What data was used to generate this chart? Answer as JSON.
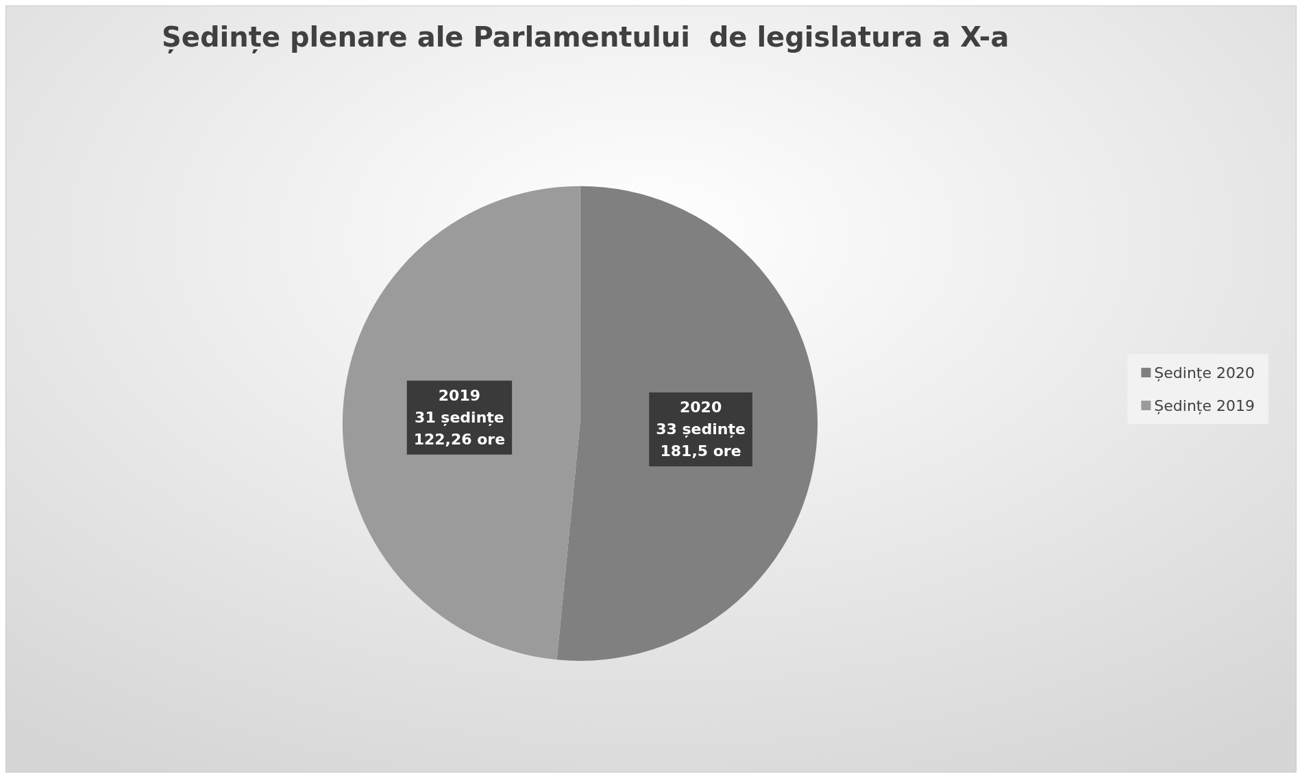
{
  "chart_data": {
    "type": "pie",
    "title": "Ședințe plenare ale Parlamentului  de legislatura a X-a",
    "categories": [
      "Ședințe 2020",
      "Ședințe 2019"
    ],
    "values": [
      33,
      31
    ],
    "colors": [
      "#808080",
      "#9b9b9b"
    ],
    "value_labels": [
      "2020\n33 ședințe\n181,5 ore",
      "2019\n31 ședințe\n122,26 ore"
    ],
    "legend": "right"
  }
}
